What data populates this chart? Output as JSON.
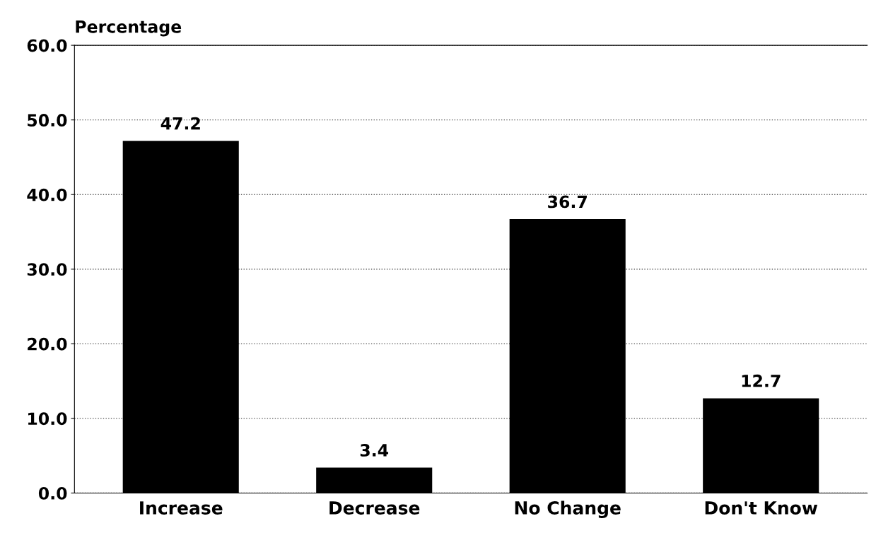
{
  "chart_data": {
    "type": "bar",
    "ylabel": "Percentage",
    "categories": [
      "Increase",
      "Decrease",
      "No Change",
      "Don't Know"
    ],
    "values": [
      47.2,
      3.4,
      36.7,
      12.7
    ],
    "color": "#000000",
    "data_labels": true,
    "ylim": [
      0,
      60
    ],
    "yticks": [
      {
        "value": 0,
        "label": "0.0"
      },
      {
        "value": 10,
        "label": "10.0"
      },
      {
        "value": 20,
        "label": "20.0"
      },
      {
        "value": 30,
        "label": "30.0"
      },
      {
        "value": 40,
        "label": "40.0"
      },
      {
        "value": 50,
        "label": "50.0"
      },
      {
        "value": 60,
        "label": "60.0"
      }
    ],
    "grid": "y",
    "line_style": "dotted"
  }
}
